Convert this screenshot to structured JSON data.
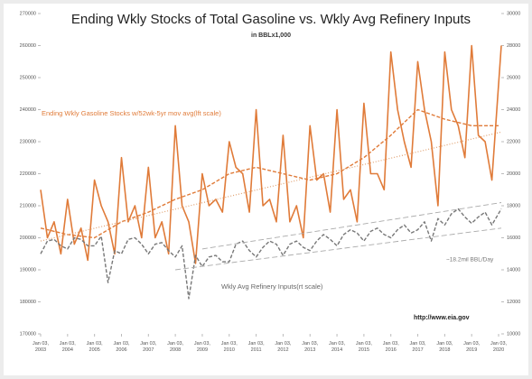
{
  "chart_data": {
    "type": "line",
    "title": "Ending Wkly Stocks of Total Gasoline  vs. Wkly Avg Refinery Inputs",
    "subtitle": "in BBLx1,000",
    "xlim": [
      2003,
      2020.1
    ],
    "xticks": [
      {
        "value": 2003,
        "label": "Jan 03,\n2003"
      },
      {
        "value": 2004,
        "label": "Jan 03,\n2004"
      },
      {
        "value": 2005,
        "label": "Jan 03,\n2005"
      },
      {
        "value": 2006,
        "label": "Jan 03,\n2006"
      },
      {
        "value": 2007,
        "label": "Jan 03,\n2007"
      },
      {
        "value": 2008,
        "label": "Jan 03,\n2008"
      },
      {
        "value": 2009,
        "label": "Jan 03,\n2009"
      },
      {
        "value": 2010,
        "label": "Jan 03,\n2010"
      },
      {
        "value": 2011,
        "label": "Jan 03,\n2011"
      },
      {
        "value": 2012,
        "label": "Jan 03,\n2012"
      },
      {
        "value": 2013,
        "label": "Jan 03,\n2013"
      },
      {
        "value": 2014,
        "label": "Jan 03,\n2014"
      },
      {
        "value": 2015,
        "label": "Jan 03,\n2015"
      },
      {
        "value": 2016,
        "label": "Jan 03,\n2016"
      },
      {
        "value": 2017,
        "label": "Jan 03,\n2017"
      },
      {
        "value": 2018,
        "label": "Jan 03,\n2018"
      },
      {
        "value": 2019,
        "label": "Jan 03,\n2019"
      },
      {
        "value": 2020,
        "label": "Jan 03,\n2020"
      }
    ],
    "ylim": [
      170000,
      270000
    ],
    "yticks": [
      170000,
      180000,
      190000,
      200000,
      210000,
      220000,
      230000,
      240000,
      250000,
      260000,
      270000
    ],
    "y2lim": [
      10000,
      30000
    ],
    "y2ticks": [
      10000,
      12000,
      14000,
      16000,
      18000,
      20000,
      22000,
      24000,
      26000,
      28000,
      30000
    ],
    "grid": false,
    "annotations": [
      "~18.2mil BBL/Day",
      "http://www.eia.gov"
    ],
    "series": [
      {
        "name": "Ending Wkly Gasoline Stocks w/52wk-5yr  mov avg(lft scale)",
        "color": "#e07b39",
        "style": "solid",
        "x": [
          2003,
          2003.25,
          2003.5,
          2003.75,
          2004,
          2004.25,
          2004.5,
          2004.75,
          2005,
          2005.25,
          2005.5,
          2005.75,
          2006,
          2006.25,
          2006.5,
          2006.75,
          2007,
          2007.25,
          2007.5,
          2007.75,
          2008,
          2008.25,
          2008.5,
          2008.75,
          2009,
          2009.25,
          2009.5,
          2009.75,
          2010,
          2010.25,
          2010.5,
          2010.75,
          2011,
          2011.25,
          2011.5,
          2011.75,
          2012,
          2012.25,
          2012.5,
          2012.75,
          2013,
          2013.25,
          2013.5,
          2013.75,
          2014,
          2014.25,
          2014.5,
          2014.75,
          2015,
          2015.25,
          2015.5,
          2015.75,
          2016,
          2016.25,
          2016.5,
          2016.75,
          2017,
          2017.25,
          2017.5,
          2017.75,
          2018,
          2018.25,
          2018.5,
          2018.75,
          2019,
          2019.25,
          2019.5,
          2019.75,
          2020.1
        ],
        "values": [
          215000,
          200000,
          205000,
          195000,
          212000,
          198000,
          203000,
          193000,
          218000,
          210000,
          205000,
          195000,
          225000,
          205000,
          210000,
          200000,
          222000,
          200000,
          205000,
          195000,
          235000,
          210000,
          205000,
          192000,
          220000,
          210000,
          212000,
          208000,
          230000,
          222000,
          220000,
          208000,
          240000,
          210000,
          212000,
          205000,
          232000,
          205000,
          210000,
          200000,
          235000,
          218000,
          220000,
          208000,
          240000,
          212000,
          215000,
          205000,
          242000,
          220000,
          220000,
          215000,
          258000,
          240000,
          230000,
          222000,
          255000,
          240000,
          230000,
          210000,
          258000,
          240000,
          235000,
          225000,
          260000,
          232000,
          230000,
          218000,
          260000
        ]
      },
      {
        "color": "#e07b39",
        "style": "dashed",
        "x": [
          2003,
          2004,
          2005,
          2006,
          2007,
          2008,
          2009,
          2010,
          2011,
          2012,
          2013,
          2014,
          2015,
          2016,
          2017,
          2018,
          2019,
          2020
        ],
        "values": [
          203000,
          201000,
          200000,
          205000,
          208000,
          212000,
          215000,
          220000,
          222000,
          220000,
          218000,
          220000,
          225000,
          232000,
          240000,
          237000,
          235000,
          235000
        ]
      },
      {
        "name": "Wkly Avg Refinery Inputs(rt scale)",
        "color": "#777777",
        "style": "dashed",
        "axis": "y2",
        "x": [
          2003,
          2003.25,
          2003.5,
          2003.75,
          2004,
          2004.25,
          2004.5,
          2004.75,
          2005,
          2005.25,
          2005.5,
          2005.75,
          2006,
          2006.25,
          2006.5,
          2006.75,
          2007,
          2007.25,
          2007.5,
          2007.75,
          2008,
          2008.25,
          2008.5,
          2008.75,
          2009,
          2009.25,
          2009.5,
          2009.75,
          2010,
          2010.25,
          2010.5,
          2010.75,
          2011,
          2011.25,
          2011.5,
          2011.75,
          2012,
          2012.25,
          2012.5,
          2012.75,
          2013,
          2013.25,
          2013.5,
          2013.75,
          2014,
          2014.25,
          2014.5,
          2014.75,
          2015,
          2015.25,
          2015.5,
          2015.75,
          2016,
          2016.25,
          2016.5,
          2016.75,
          2017,
          2017.25,
          2017.5,
          2017.75,
          2018,
          2018.25,
          2018.5,
          2018.75,
          2019,
          2019.25,
          2019.5,
          2019.75,
          2020.1
        ],
        "values": [
          15000,
          15800,
          15900,
          15500,
          15300,
          16000,
          15900,
          15500,
          15500,
          16100,
          13200,
          15200,
          15000,
          15900,
          16000,
          15600,
          15000,
          15600,
          15700,
          15200,
          14800,
          15500,
          12200,
          14900,
          14200,
          14800,
          14900,
          14500,
          14500,
          15600,
          15800,
          15200,
          14800,
          15400,
          15800,
          15600,
          14900,
          15600,
          15800,
          15400,
          15200,
          15800,
          16200,
          15900,
          15500,
          16200,
          16500,
          16300,
          15800,
          16400,
          16600,
          16200,
          16000,
          16500,
          16800,
          16300,
          16500,
          17000,
          15800,
          17200,
          16800,
          17500,
          17800,
          17300,
          16900,
          17300,
          17600,
          16800,
          17800
        ]
      },
      {
        "color": "#e0a070",
        "style": "dotted",
        "x": [
          2003,
          2020.1
        ],
        "values": [
          199000,
          233000
        ]
      },
      {
        "color": "#aaaaaa",
        "style": "longdash",
        "axis": "y2",
        "x": [
          2008,
          2020.1
        ],
        "values": [
          14000,
          16600
        ]
      },
      {
        "color": "#aaaaaa",
        "style": "longdash",
        "axis": "y2",
        "x": [
          2009,
          2020.1
        ],
        "values": [
          15300,
          18200
        ]
      }
    ]
  }
}
